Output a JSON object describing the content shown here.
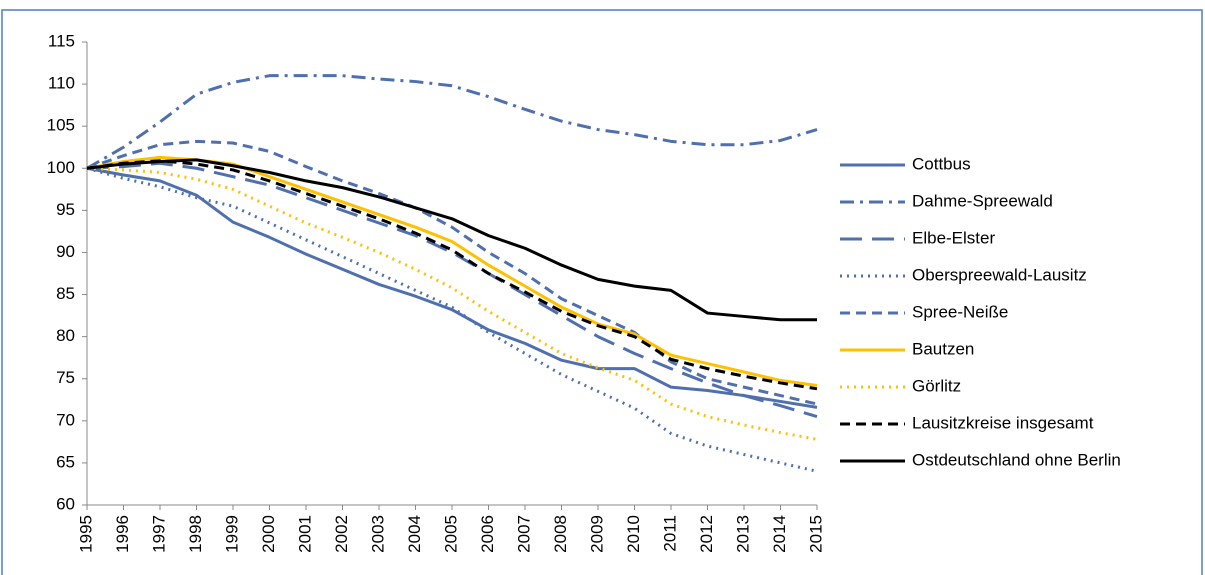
{
  "chart_data": {
    "type": "line",
    "categories": [
      "1995",
      "1996",
      "1997",
      "1998",
      "1999",
      "2000",
      "2001",
      "2002",
      "2003",
      "2004",
      "2005",
      "2006",
      "2007",
      "2008",
      "2009",
      "2010",
      "2011",
      "2012",
      "2013",
      "2014",
      "2015"
    ],
    "ylim": [
      60,
      115
    ],
    "yticks": [
      60,
      65,
      70,
      75,
      80,
      85,
      90,
      95,
      100,
      105,
      110,
      115
    ],
    "grid": false,
    "legend": "right",
    "series": [
      {
        "name": "Cottbus",
        "color": "#4f6fae",
        "dash": "solid",
        "values": [
          100,
          99.2,
          98.5,
          96.8,
          93.6,
          91.8,
          89.8,
          88,
          86.2,
          84.8,
          83.2,
          80.8,
          79.2,
          77.2,
          76.2,
          76.2,
          74,
          73.6,
          73,
          72.3,
          71.6
        ]
      },
      {
        "name": "Dahme-Spreewald",
        "color": "#4f6fae",
        "dash": "dashdot",
        "values": [
          100,
          102.5,
          105.5,
          108.8,
          110.2,
          111,
          111,
          111,
          110.6,
          110.3,
          109.8,
          108.5,
          107,
          105.6,
          104.6,
          104,
          103.2,
          102.8,
          102.8,
          103.3,
          104.6
        ]
      },
      {
        "name": "Elbe-Elster",
        "color": "#4f6fae",
        "dash": "longdash",
        "values": [
          100,
          100.2,
          100.6,
          100,
          99,
          98,
          96.5,
          95,
          93.5,
          92,
          90,
          87.5,
          85,
          82.5,
          80,
          78,
          76.2,
          74.5,
          73,
          71.8,
          70.5
        ]
      },
      {
        "name": "Oberspreewald-Lausitz",
        "color": "#4f6fae",
        "dash": "dot",
        "values": [
          100,
          98.8,
          97.8,
          96.5,
          95.5,
          93.5,
          91.5,
          89.5,
          87.5,
          85.5,
          83.5,
          80.5,
          78,
          75.5,
          73.5,
          71.5,
          68.5,
          67,
          66,
          65,
          64
        ]
      },
      {
        "name": "Spree-Neiße",
        "color": "#4f6fae",
        "dash": "dash",
        "values": [
          100,
          101.5,
          102.8,
          103.2,
          103,
          102,
          100.2,
          98.5,
          97,
          95.3,
          93,
          90,
          87.5,
          84.5,
          82.5,
          80.5,
          77,
          75,
          74,
          73,
          72
        ]
      },
      {
        "name": "Bautzen",
        "color": "#ffc000",
        "dash": "solid",
        "values": [
          100,
          100.8,
          101.3,
          101,
          100.5,
          99,
          97.5,
          96,
          94.5,
          93,
          91.3,
          88.5,
          86,
          83.5,
          81.5,
          80.3,
          77.8,
          76.8,
          75.8,
          74.8,
          74.2
        ]
      },
      {
        "name": "Görlitz",
        "color": "#ffc000",
        "dash": "dot",
        "values": [
          100,
          99.8,
          99.5,
          98.7,
          97.5,
          95.5,
          93.5,
          91.8,
          90,
          88,
          85.8,
          83,
          80.5,
          78,
          76.3,
          74.8,
          72,
          70.5,
          69.5,
          68.6,
          67.8
        ]
      },
      {
        "name": "Lausitzkreise insgesamt",
        "color": "#000000",
        "dash": "dash",
        "values": [
          100,
          100.6,
          100.9,
          100.5,
          99.8,
          98.5,
          97,
          95.5,
          94,
          92.3,
          90.3,
          87.5,
          85.3,
          83,
          81.3,
          80,
          77.3,
          76.2,
          75.3,
          74.5,
          73.8
        ]
      },
      {
        "name": "Ostdeutschland ohne Berlin",
        "color": "#000000",
        "dash": "solid",
        "values": [
          100,
          100.5,
          100.8,
          101,
          100.3,
          99.5,
          98.5,
          97.7,
          96.6,
          95.3,
          94,
          92,
          90.5,
          88.5,
          86.8,
          86,
          85.5,
          82.8,
          82.4,
          82,
          82
        ]
      }
    ]
  }
}
